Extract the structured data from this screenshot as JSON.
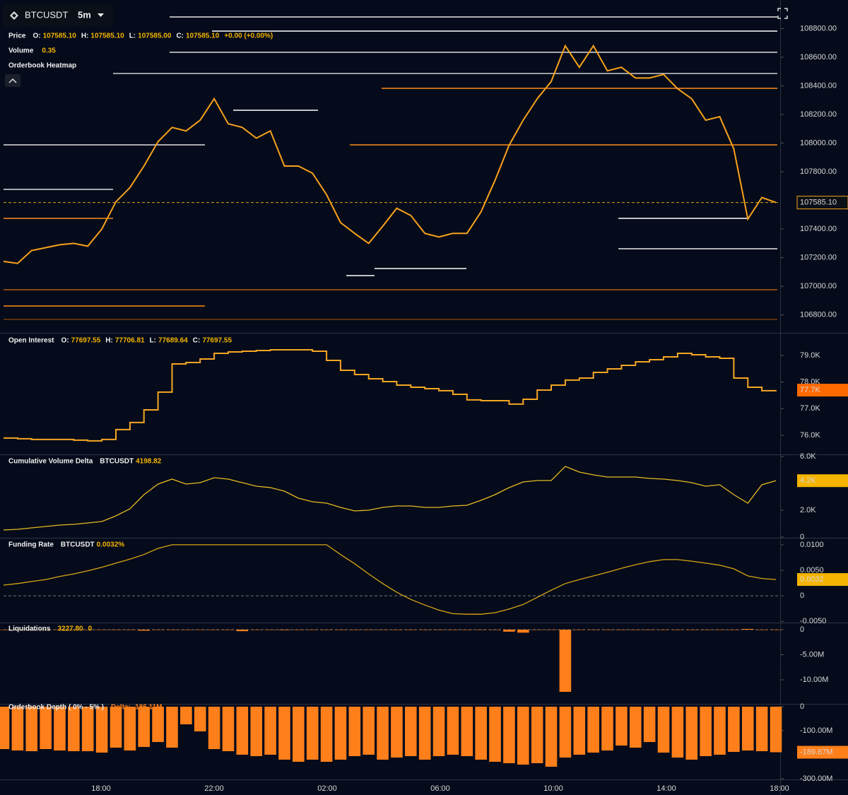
{
  "header": {
    "symbol": "BTCUSDT",
    "interval": "5m"
  },
  "time_labels": [
    "18:00",
    "22:00",
    "02:00",
    "06:00",
    "10:00",
    "14:00",
    "18:00"
  ],
  "chart_data": [
    {
      "type": "line",
      "title": "Price",
      "color": "#f7a21b",
      "legend": [
        {
          "label": "O:",
          "value": "107585.10"
        },
        {
          "label": "H:",
          "value": "107585.10"
        },
        {
          "label": "L:",
          "value": "107585.00"
        },
        {
          "label": "C:",
          "value": "107585.10"
        },
        {
          "value": "+0.00 (+0.00%)"
        }
      ],
      "extra_rows": [
        {
          "label": "Volume",
          "value": "0.35"
        },
        {
          "label": "Orderbook Heatmap"
        }
      ],
      "ylim": [
        106680,
        108975
      ],
      "yticks": [
        {
          "value": 108800,
          "label": "108800.00"
        },
        {
          "value": 108600,
          "label": "108600.00"
        },
        {
          "value": 108400,
          "label": "108400.00"
        },
        {
          "value": 108200,
          "label": "108200.00"
        },
        {
          "value": 108000,
          "label": "108000.00"
        },
        {
          "value": 107800,
          "label": "107800.00"
        },
        {
          "value": 107400,
          "label": "107400.00"
        },
        {
          "value": 107200,
          "label": "107200.00"
        },
        {
          "value": 107000,
          "label": "107000.00"
        },
        {
          "value": 106800,
          "label": "106800.00"
        }
      ],
      "last_label": "107585.10",
      "values": [
        107174,
        107160,
        107250,
        107270,
        107290,
        107300,
        107280,
        107400,
        107590,
        107690,
        107840,
        108010,
        108110,
        108085,
        108160,
        108310,
        108135,
        108110,
        108035,
        108085,
        107840,
        107840,
        107790,
        107640,
        107445,
        107370,
        107300,
        107420,
        107545,
        107495,
        107370,
        107345,
        107370,
        107370,
        107520,
        107740,
        107985,
        108160,
        108310,
        108430,
        108680,
        108530,
        108680,
        108505,
        108530,
        108455,
        108455,
        108480,
        108380,
        108310,
        108160,
        108185,
        107960,
        107470,
        107620,
        107585.1
      ]
    },
    {
      "type": "step",
      "title": "Open Interest",
      "color": "#f5a623",
      "legend": [
        {
          "label": "O:",
          "value": "77697.55"
        },
        {
          "label": "H:",
          "value": "77706.81"
        },
        {
          "label": "L:",
          "value": "77689.64"
        },
        {
          "label": "C:",
          "value": "77697.55"
        }
      ],
      "ylim": [
        75310,
        79796
      ],
      "yticks": [
        {
          "value": 79000,
          "label": "79.0K"
        },
        {
          "value": 78000,
          "label": "78.0K"
        },
        {
          "value": 77000,
          "label": "77.0K"
        },
        {
          "value": 76000,
          "label": "76.0K"
        }
      ],
      "last_label": "77.7K",
      "tag_color": "#ff6a00",
      "values": [
        75896,
        75870,
        75843,
        75843,
        75843,
        75817,
        75790,
        75843,
        76214,
        76480,
        76957,
        77621,
        78682,
        78735,
        78867,
        79080,
        79133,
        79159,
        79186,
        79212,
        79212,
        79212,
        79159,
        78814,
        78443,
        78284,
        78125,
        78018,
        77886,
        77806,
        77753,
        77674,
        77541,
        77329,
        77302,
        77302,
        77170,
        77355,
        77700,
        77886,
        78072,
        78151,
        78363,
        78496,
        78629,
        78761,
        78841,
        78947,
        79080,
        79027,
        78947,
        78894,
        78151,
        77806,
        77674,
        77697.55
      ]
    },
    {
      "type": "line",
      "title": "Cumulative Volume Delta",
      "color": "#e8b923",
      "legend": [
        {
          "label": "BTCUSDT",
          "value": "4198.82"
        }
      ],
      "ylim": [
        0,
        6000
      ],
      "yticks": [
        {
          "value": 6000,
          "label": "6.0K"
        },
        {
          "value": 2000,
          "label": "2.0K"
        },
        0
      ],
      "last_label": "4.2K",
      "tag_color": "#f5b400",
      "values": [
        526,
        579,
        684,
        789,
        895,
        947,
        1053,
        1158,
        1579,
        2105,
        3158,
        3947,
        4316,
        3947,
        4053,
        4421,
        4316,
        4053,
        3789,
        3684,
        3421,
        2895,
        2632,
        2526,
        2211,
        1947,
        2000,
        2211,
        2316,
        2316,
        2211,
        2211,
        2316,
        2368,
        2737,
        3158,
        3684,
        4105,
        4211,
        4211,
        5263,
        4842,
        4632,
        4474,
        4474,
        4474,
        4368,
        4316,
        4211,
        4053,
        3789,
        3895,
        3158,
        2526,
        3895,
        4198.82
      ]
    },
    {
      "type": "line",
      "title": "Funding Rate",
      "color": "#d9a514",
      "legend": [
        {
          "label": "BTCUSDT",
          "value": "0.0032%"
        }
      ],
      "ylim": [
        -0.0051,
        0.0111
      ],
      "yticks": [
        {
          "value": 0.01,
          "label": "0.0100"
        },
        {
          "value": 0.005,
          "label": "0.0050"
        },
        0,
        {
          "value": -0.005,
          "label": "-0.0050"
        }
      ],
      "zero_line": true,
      "last_label": "0.0032",
      "tag_color": "#f5b400",
      "values": [
        0.0021,
        0.0024,
        0.0028,
        0.0032,
        0.0038,
        0.0043,
        0.0049,
        0.0056,
        0.0064,
        0.0072,
        0.0081,
        0.0093,
        0.01,
        0.01,
        0.01,
        0.01,
        0.01,
        0.01,
        0.01,
        0.01,
        0.01,
        0.01,
        0.01,
        0.01,
        0.0081,
        0.0063,
        0.0043,
        0.0024,
        0.0007,
        -0.0007,
        -0.0018,
        -0.0028,
        -0.0035,
        -0.0036,
        -0.0036,
        -0.0033,
        -0.0026,
        -0.0017,
        -0.0003,
        0.0011,
        0.0024,
        0.0032,
        0.0039,
        0.0046,
        0.0054,
        0.0061,
        0.0067,
        0.0071,
        0.0071,
        0.0068,
        0.0064,
        0.006,
        0.0053,
        0.0039,
        0.0034,
        0.0032
      ]
    },
    {
      "type": "bar",
      "title": "Liquidations",
      "color": "#ff7f1a",
      "legend": [
        {
          "value": "3227.80"
        },
        {
          "value": "0"
        }
      ],
      "ylim": [
        -14650000,
        1130000
      ],
      "yticks": [
        0,
        {
          "value": -5000000,
          "label": "-5.00M"
        },
        {
          "value": -10000000,
          "label": "-10.00M"
        }
      ],
      "zero_line": true,
      "values": [
        0,
        0,
        0,
        0,
        0,
        0,
        0,
        0,
        0,
        0,
        -200000,
        0,
        0,
        0,
        0,
        0,
        0,
        -300000,
        0,
        0,
        -100000,
        0,
        0,
        0,
        0,
        0,
        0,
        0,
        0,
        0,
        0,
        0,
        0,
        0,
        0,
        0,
        -400000,
        -600000,
        0,
        0,
        -12400000,
        0,
        0,
        0,
        0,
        0,
        0,
        0,
        0,
        0,
        0,
        0,
        0,
        150000,
        0,
        0
      ]
    },
    {
      "type": "bar",
      "title": "Orderbook Depth ( 0% - 5% )",
      "color": "#ff7f1a",
      "legend": [
        {
          "label": "Delta:",
          "value": "-186.11M"
        }
      ],
      "legend_color": "#ff7f1a",
      "ylim": [
        -300000000,
        6000000
      ],
      "yticks": [
        0,
        {
          "value": -100000000,
          "label": "-100.00M"
        },
        {
          "value": -300000000,
          "label": "-300.00M"
        }
      ],
      "last_label": "-189.67M",
      "tag_color": "#ff7f1a",
      "values": [
        -176500000,
        -182400000,
        -185300000,
        -176500000,
        -182400000,
        -185300000,
        -185300000,
        -191200000,
        -170600000,
        -182400000,
        -167600000,
        -147100000,
        -170600000,
        -73500000,
        -102900000,
        -176500000,
        -185300000,
        -200000000,
        -205900000,
        -200000000,
        -220600000,
        -229400000,
        -220600000,
        -229400000,
        -220600000,
        -205900000,
        -200000000,
        -220600000,
        -211800000,
        -205900000,
        -220600000,
        -205900000,
        -200000000,
        -205900000,
        -220600000,
        -229400000,
        -235300000,
        -241200000,
        -235300000,
        -250000000,
        -211800000,
        -200000000,
        -191200000,
        -182400000,
        -161800000,
        -170600000,
        -147100000,
        -191200000,
        -211800000,
        -220600000,
        -205900000,
        -200000000,
        -188200000,
        -182400000,
        -185300000,
        -189670000
      ]
    }
  ]
}
